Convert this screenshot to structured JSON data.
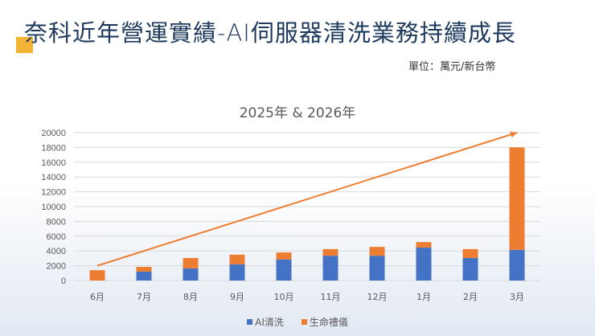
{
  "slide": {
    "title": "奈科近年營運實績-AI伺服器清洗業務持續成長",
    "unit_label": "單位：萬元/新台幣",
    "accent_color": "#f4b433"
  },
  "chart_data": {
    "type": "bar",
    "stacked": true,
    "title": "2025年 & 2026年",
    "xlabel": "",
    "ylabel": "",
    "ylim": [
      0,
      20000
    ],
    "yticks": [
      0,
      2000,
      4000,
      6000,
      8000,
      10000,
      12000,
      14000,
      16000,
      18000,
      20000
    ],
    "grid": true,
    "legend_position": "bottom",
    "categories": [
      "6月",
      "7月",
      "8月",
      "9月",
      "10月",
      "11月",
      "12月",
      "1月",
      "2月",
      "3月"
    ],
    "series": [
      {
        "name": "AI清洗",
        "color": "#4472c4",
        "values": [
          0,
          1200,
          1650,
          2200,
          2850,
          3350,
          3350,
          4450,
          3050,
          4150
        ]
      },
      {
        "name": "生命禮儀",
        "color": "#ed7d31",
        "values": [
          1400,
          650,
          1400,
          1300,
          950,
          900,
          1200,
          750,
          1200,
          13850
        ]
      }
    ],
    "annotations": [
      {
        "type": "trend-arrow",
        "color": "#ed7d31",
        "from": {
          "category": "6月",
          "value": 2000
        },
        "to": {
          "category": "3月",
          "value": 20000
        }
      }
    ]
  }
}
